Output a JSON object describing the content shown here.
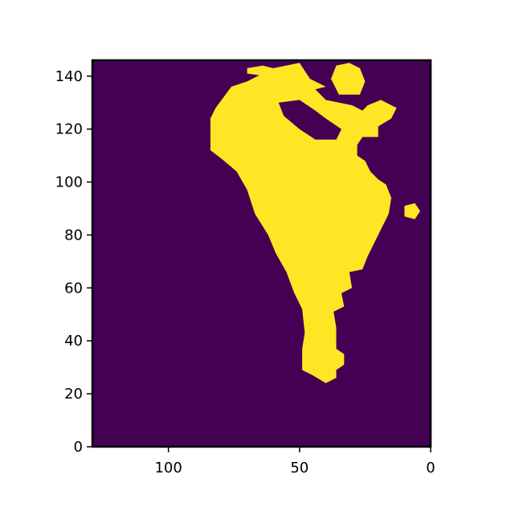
{
  "chart_data": {
    "type": "heatmap",
    "title": "",
    "xlabel": "",
    "ylabel": "",
    "xlim": [
      129,
      0
    ],
    "ylim": [
      0,
      146
    ],
    "x_reversed": true,
    "x_ticks": [
      100,
      50,
      0
    ],
    "x_tick_labels": [
      "100",
      "50",
      "0"
    ],
    "y_ticks": [
      0,
      20,
      40,
      60,
      80,
      100,
      120,
      140
    ],
    "y_tick_labels": [
      "0",
      "20",
      "40",
      "60",
      "80",
      "100",
      "120",
      "140"
    ],
    "grid": false,
    "legend": "none",
    "values": [
      0,
      1
    ],
    "colors": {
      "0": "#440154",
      "1": "#fde725"
    },
    "mask_description": "Binary mask; value 1 forms a foot-shaped region (heel near y=25, toes near y=140), value 0 elsewhere.",
    "regions": [
      {
        "value": 1,
        "shape": "foot-body",
        "outline": [
          [
            40,
            24
          ],
          [
            36,
            26
          ],
          [
            36,
            29
          ],
          [
            33,
            31
          ],
          [
            33,
            35
          ],
          [
            36,
            37
          ],
          [
            36,
            45
          ],
          [
            37,
            51
          ],
          [
            33,
            53
          ],
          [
            34,
            58
          ],
          [
            30,
            60
          ],
          [
            31,
            66
          ],
          [
            26,
            67
          ],
          [
            24,
            72
          ],
          [
            22,
            76
          ],
          [
            19,
            82
          ],
          [
            16,
            88
          ],
          [
            15,
            94
          ],
          [
            17,
            99
          ],
          [
            20,
            101
          ],
          [
            23,
            104
          ],
          [
            25,
            108
          ],
          [
            28,
            110
          ],
          [
            28,
            114
          ],
          [
            26,
            117
          ],
          [
            20,
            117
          ],
          [
            20,
            121
          ],
          [
            15,
            124
          ],
          [
            13,
            128
          ],
          [
            19,
            131
          ],
          [
            24,
            129
          ],
          [
            26,
            127
          ],
          [
            30,
            129
          ],
          [
            40,
            131
          ],
          [
            44,
            135
          ],
          [
            40,
            136
          ],
          [
            46,
            139
          ],
          [
            50,
            145
          ],
          [
            60,
            143
          ],
          [
            66,
            140
          ],
          [
            70,
            138
          ],
          [
            76,
            136
          ],
          [
            82,
            128
          ],
          [
            84,
            124
          ],
          [
            84,
            112
          ],
          [
            80,
            109
          ],
          [
            74,
            104
          ],
          [
            70,
            97
          ],
          [
            67,
            88
          ],
          [
            62,
            80
          ],
          [
            59,
            73
          ],
          [
            55,
            66
          ],
          [
            52,
            58
          ],
          [
            49,
            52
          ],
          [
            48,
            43
          ],
          [
            49,
            37
          ],
          [
            49,
            29
          ],
          [
            45,
            27
          ]
        ]
      },
      {
        "value": 1,
        "shape": "big-toe",
        "outline": [
          [
            35,
            133
          ],
          [
            27,
            133
          ],
          [
            25,
            138
          ],
          [
            27,
            143
          ],
          [
            31,
            145
          ],
          [
            36,
            144
          ],
          [
            38,
            139
          ]
        ]
      },
      {
        "value": 1,
        "shape": "toe-strip",
        "outline": [
          [
            70,
            143
          ],
          [
            64,
            144
          ],
          [
            56,
            142
          ],
          [
            53,
            140
          ],
          [
            56,
            138
          ],
          [
            63,
            140
          ],
          [
            70,
            141
          ]
        ]
      },
      {
        "value": 1,
        "shape": "toe-right",
        "outline": [
          [
            10,
            87
          ],
          [
            6,
            86
          ],
          [
            4,
            89
          ],
          [
            6,
            92
          ],
          [
            10,
            91
          ]
        ]
      },
      {
        "value": 0,
        "shape": "arch-gap",
        "outline": [
          [
            50,
            131
          ],
          [
            44,
            127
          ],
          [
            40,
            124
          ],
          [
            34,
            120
          ],
          [
            36,
            116
          ],
          [
            44,
            116
          ],
          [
            50,
            120
          ],
          [
            56,
            125
          ],
          [
            58,
            130
          ]
        ]
      },
      {
        "value": 0,
        "shape": "hole",
        "outline": [
          [
            28,
            63
          ],
          [
            25,
            63
          ],
          [
            25,
            66
          ],
          [
            28,
            66
          ]
        ]
      }
    ]
  }
}
